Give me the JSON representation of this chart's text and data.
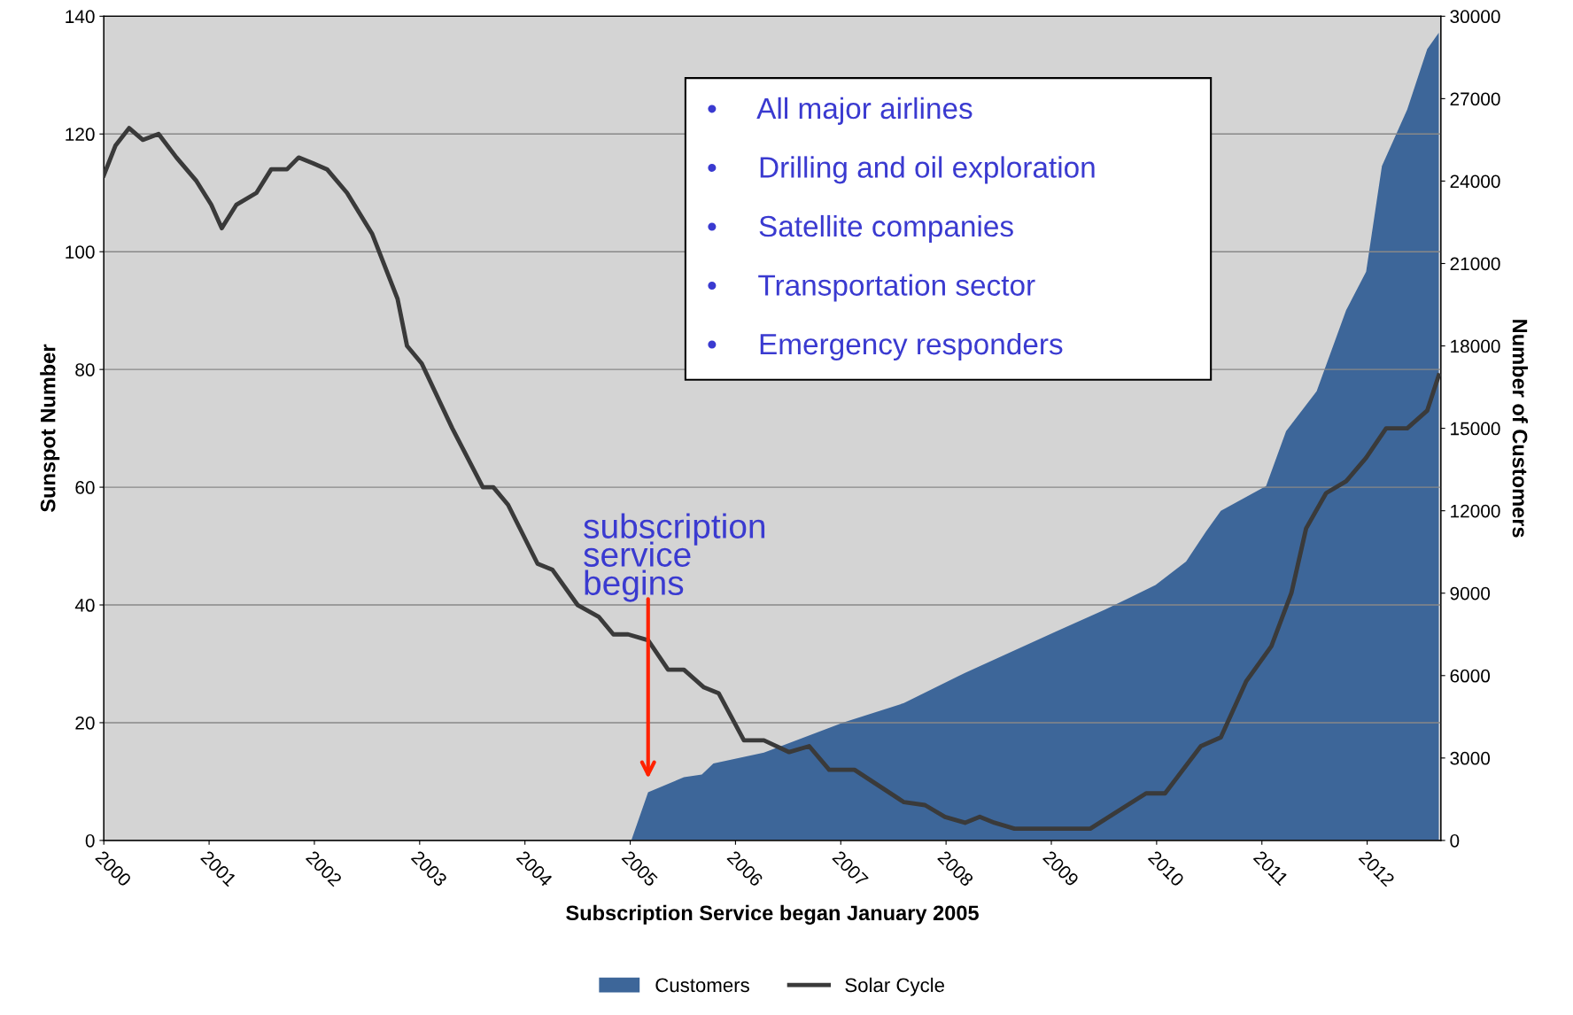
{
  "chart_data": {
    "type": "line",
    "xlabel": "Subscription Service began January 2005",
    "ylabel": "Sunspot Number",
    "y2label": "Number of Customers",
    "xlim": [
      2000,
      2012.7
    ],
    "xticks": [
      2000,
      2001,
      2002,
      2003,
      2004,
      2005,
      2006,
      2007,
      2008,
      2009,
      2010,
      2011,
      2012
    ],
    "ylim": [
      0,
      140
    ],
    "yticks": [
      0,
      20,
      40,
      60,
      80,
      100,
      120,
      140
    ],
    "y2lim": [
      0,
      30000
    ],
    "y2ticks": [
      0,
      3000,
      6000,
      9000,
      12000,
      15000,
      18000,
      21000,
      24000,
      27000,
      30000
    ],
    "grid": "y",
    "legend": "bottom",
    "series": [
      {
        "name": "Customers",
        "type": "area",
        "axis": "y2",
        "color": "#3d6699",
        "x": [
          2005.01,
          2005.17,
          2005.51,
          2005.68,
          2005.79,
          2006.27,
          2007.03,
          2007.6,
          2008.18,
          2009.04,
          2009.51,
          2009.99,
          2010.28,
          2010.47,
          2010.61,
          2011.04,
          2011.23,
          2011.52,
          2011.8,
          2011.99,
          2012.14,
          2012.38,
          2012.57,
          2012.68
        ],
        "values": [
          0,
          1750,
          2300,
          2400,
          2800,
          3200,
          4300,
          5000,
          6100,
          7600,
          8400,
          9300,
          10150,
          11250,
          12000,
          12900,
          14900,
          16350,
          19300,
          20700,
          24550,
          26600,
          28800,
          29400
        ]
      },
      {
        "name": "Solar Cycle",
        "color": "#3a3a3a",
        "x": [
          2000.0,
          2000.11,
          2000.24,
          2000.37,
          2000.52,
          2000.69,
          2000.88,
          2001.02,
          2001.12,
          2001.26,
          2001.45,
          2001.59,
          2001.74,
          2001.85,
          2001.99,
          2002.12,
          2002.31,
          2002.55,
          2002.79,
          2002.88,
          2003.02,
          2003.31,
          2003.6,
          2003.7,
          2003.84,
          2004.12,
          2004.26,
          2004.5,
          2004.7,
          2004.84,
          2004.98,
          2005.17,
          2005.36,
          2005.51,
          2005.7,
          2005.84,
          2006.08,
          2006.27,
          2006.51,
          2006.7,
          2006.89,
          2007.13,
          2007.6,
          2007.8,
          2007.99,
          2008.18,
          2008.32,
          2008.46,
          2008.65,
          2009.37,
          2009.9,
          2010.08,
          2010.42,
          2010.61,
          2010.85,
          2011.09,
          2011.28,
          2011.42,
          2011.61,
          2011.8,
          2011.99,
          2012.18,
          2012.38,
          2012.57,
          2012.68
        ],
        "values": [
          113,
          118,
          121,
          119,
          120,
          116,
          112,
          108,
          104,
          108,
          110,
          114,
          114,
          116,
          115,
          114,
          110,
          103,
          92,
          84,
          81,
          70,
          60,
          60,
          57,
          47,
          46,
          40,
          38,
          35,
          35,
          34,
          29,
          29,
          26,
          25,
          17,
          17,
          15,
          16,
          12,
          12,
          6.5,
          6,
          4,
          3,
          4,
          3,
          2,
          2,
          8,
          8,
          16,
          17.5,
          27,
          33,
          42,
          53,
          59,
          61,
          65,
          70,
          70,
          73,
          79
        ]
      }
    ],
    "annotations": [
      "•     All major airlines",
      "•     Drilling and oil exploration",
      "•     Satellite companies",
      "•     Transportation sector",
      "•     Emergency responders",
      "subscription\nservice\nbegins"
    ]
  }
}
